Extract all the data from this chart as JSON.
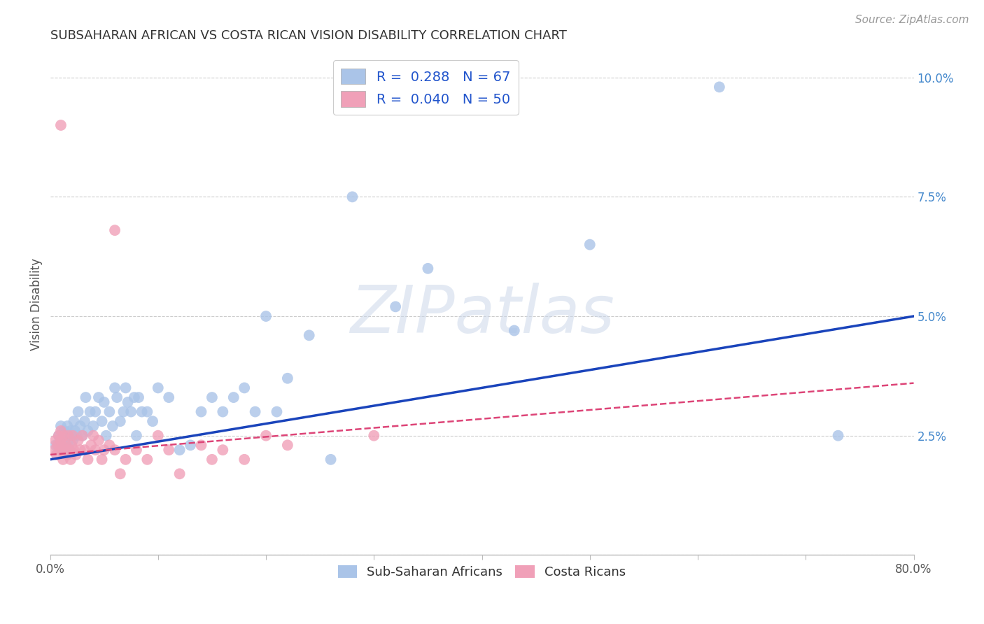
{
  "title": "SUBSAHARAN AFRICAN VS COSTA RICAN VISION DISABILITY CORRELATION CHART",
  "source": "Source: ZipAtlas.com",
  "ylabel": "Vision Disability",
  "xlim": [
    0.0,
    0.8
  ],
  "ylim": [
    0.0,
    0.105
  ],
  "xticks": [
    0.0,
    0.1,
    0.2,
    0.3,
    0.4,
    0.5,
    0.6,
    0.7,
    0.8
  ],
  "xticklabels": [
    "0.0%",
    "",
    "",
    "",
    "",
    "",
    "",
    "",
    "80.0%"
  ],
  "yticks": [
    0.0,
    0.025,
    0.05,
    0.075,
    0.1
  ],
  "yticklabels": [
    "",
    "2.5%",
    "5.0%",
    "7.5%",
    "10.0%"
  ],
  "watermark": "ZIPatlas",
  "blue_color": "#aac4e8",
  "pink_color": "#f0a0b8",
  "blue_line_color": "#1a44bb",
  "pink_line_color": "#dd4477",
  "legend_blue_label": "R =  0.288   N = 67",
  "legend_pink_label": "R =  0.040   N = 50",
  "legend_bottom_blue": "Sub-Saharan Africans",
  "legend_bottom_pink": "Costa Ricans",
  "blue_line": [
    0.0,
    0.02,
    0.8,
    0.05
  ],
  "pink_line": [
    0.0,
    0.021,
    0.8,
    0.036
  ],
  "blue_x": [
    0.005,
    0.008,
    0.01,
    0.01,
    0.012,
    0.013,
    0.014,
    0.015,
    0.016,
    0.017,
    0.018,
    0.019,
    0.02,
    0.021,
    0.022,
    0.023,
    0.025,
    0.026,
    0.028,
    0.03,
    0.032,
    0.033,
    0.035,
    0.037,
    0.04,
    0.042,
    0.045,
    0.048,
    0.05,
    0.052,
    0.055,
    0.058,
    0.06,
    0.062,
    0.065,
    0.068,
    0.07,
    0.072,
    0.075,
    0.078,
    0.08,
    0.082,
    0.085,
    0.09,
    0.095,
    0.1,
    0.11,
    0.12,
    0.13,
    0.14,
    0.15,
    0.16,
    0.17,
    0.18,
    0.19,
    0.2,
    0.21,
    0.22,
    0.24,
    0.26,
    0.28,
    0.32,
    0.35,
    0.43,
    0.5,
    0.62,
    0.73
  ],
  "blue_y": [
    0.023,
    0.025,
    0.022,
    0.027,
    0.024,
    0.026,
    0.025,
    0.023,
    0.027,
    0.024,
    0.022,
    0.026,
    0.025,
    0.024,
    0.028,
    0.026,
    0.025,
    0.03,
    0.027,
    0.025,
    0.028,
    0.033,
    0.026,
    0.03,
    0.027,
    0.03,
    0.033,
    0.028,
    0.032,
    0.025,
    0.03,
    0.027,
    0.035,
    0.033,
    0.028,
    0.03,
    0.035,
    0.032,
    0.03,
    0.033,
    0.025,
    0.033,
    0.03,
    0.03,
    0.028,
    0.035,
    0.033,
    0.022,
    0.023,
    0.03,
    0.033,
    0.03,
    0.033,
    0.035,
    0.03,
    0.05,
    0.03,
    0.037,
    0.046,
    0.02,
    0.075,
    0.052,
    0.06,
    0.047,
    0.065,
    0.098,
    0.025
  ],
  "pink_x": [
    0.004,
    0.005,
    0.006,
    0.007,
    0.008,
    0.009,
    0.01,
    0.01,
    0.011,
    0.012,
    0.013,
    0.014,
    0.015,
    0.016,
    0.017,
    0.018,
    0.019,
    0.02,
    0.021,
    0.022,
    0.024,
    0.026,
    0.028,
    0.03,
    0.032,
    0.035,
    0.038,
    0.04,
    0.042,
    0.045,
    0.048,
    0.05,
    0.055,
    0.06,
    0.065,
    0.07,
    0.08,
    0.09,
    0.1,
    0.11,
    0.12,
    0.14,
    0.15,
    0.16,
    0.18,
    0.2,
    0.22,
    0.3,
    0.01,
    0.06
  ],
  "pink_y": [
    0.022,
    0.024,
    0.021,
    0.023,
    0.025,
    0.022,
    0.024,
    0.026,
    0.023,
    0.02,
    0.025,
    0.022,
    0.023,
    0.021,
    0.025,
    0.022,
    0.02,
    0.023,
    0.025,
    0.022,
    0.021,
    0.024,
    0.022,
    0.025,
    0.022,
    0.02,
    0.023,
    0.025,
    0.022,
    0.024,
    0.02,
    0.022,
    0.023,
    0.022,
    0.017,
    0.02,
    0.022,
    0.02,
    0.025,
    0.022,
    0.017,
    0.023,
    0.02,
    0.022,
    0.02,
    0.025,
    0.023,
    0.025,
    0.09,
    0.068
  ],
  "background_color": "#ffffff",
  "grid_color": "#cccccc"
}
